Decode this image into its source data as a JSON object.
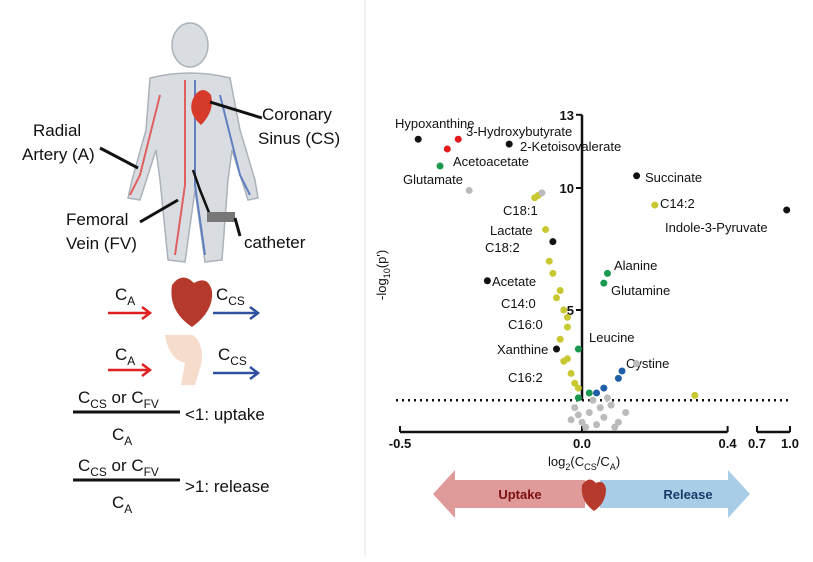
{
  "diagram": {
    "radial_artery": [
      "Radial",
      "Artery (A)"
    ],
    "coronary_sinus": [
      "Coronary",
      "Sinus (CS)"
    ],
    "femoral_vein": [
      "Femoral",
      "Vein (FV)"
    ],
    "catheter": "catheter",
    "c_a": [
      "C",
      "A"
    ],
    "c_cs": [
      "C",
      "CS"
    ],
    "numerator": [
      "C",
      "CS",
      " or C",
      "FV"
    ],
    "denominator": [
      "C",
      "A"
    ],
    "uptake_rule": "<1: uptake",
    "release_rule": ">1: release"
  },
  "arrow": {
    "left": "Uptake",
    "right": "Release"
  },
  "chart_data": {
    "type": "scatter",
    "x_label_parts": [
      "log",
      "2",
      "(C",
      "CS",
      "/C",
      "A",
      ")"
    ],
    "y_label_parts": [
      "-log",
      "10",
      "(p')"
    ],
    "xlim": [
      -0.5,
      1.0
    ],
    "xbreak": [
      0.4,
      0.7
    ],
    "ylim": [
      0,
      13
    ],
    "xticks": [
      -0.5,
      {
        "value": 0,
        "label": "0.0"
      },
      0.4,
      0.7,
      {
        "value": 1,
        "label": "1.0"
      }
    ],
    "yticks": [
      13,
      10,
      5
    ],
    "threshold": 1.3,
    "points": [
      {
        "x": -0.45,
        "y": 12.0,
        "label": "Hypoxanthine",
        "color": "#111111"
      },
      {
        "x": -0.34,
        "y": 12.0,
        "label": "3-Hydroxybutyrate",
        "color": "#e31a1c"
      },
      {
        "x": -0.2,
        "y": 11.8,
        "label": "2-Ketoisovalerate",
        "color": "#111111"
      },
      {
        "x": -0.37,
        "y": 11.6,
        "label": "Acetoacetate",
        "color": "#e31a1c"
      },
      {
        "x": -0.39,
        "y": 10.9,
        "label": "Glutamate",
        "color": "#1a9850"
      },
      {
        "x": 0.15,
        "y": 10.5,
        "label": "Succinate",
        "color": "#111111"
      },
      {
        "x": 0.2,
        "y": 9.3,
        "label": "C14:2",
        "color": "#c8c832"
      },
      {
        "x": 0.97,
        "y": 9.1,
        "label": "Indole-3-Pyruvate",
        "color": "#111111"
      },
      {
        "x": -0.13,
        "y": 9.6,
        "label": "C18:1",
        "color": "#c8c832"
      },
      {
        "x": -0.08,
        "y": 7.8,
        "label": "Lactate",
        "color": "#111111"
      },
      {
        "x": -0.09,
        "y": 7.0,
        "label": "C18:2",
        "color": "#c8c832"
      },
      {
        "x": -0.26,
        "y": 6.2,
        "label": "Acetate",
        "color": "#111111"
      },
      {
        "x": 0.07,
        "y": 6.5,
        "label": "Alanine",
        "color": "#1a9850"
      },
      {
        "x": 0.06,
        "y": 6.1,
        "label": "Glutamine",
        "color": "#1a9850"
      },
      {
        "x": -0.07,
        "y": 5.5,
        "label": "C14:0",
        "color": "#c8c832"
      },
      {
        "x": -0.04,
        "y": 4.3,
        "label": "C16:0",
        "color": "#c8c832"
      },
      {
        "x": -0.01,
        "y": 3.4,
        "label": "Leucine",
        "color": "#1a9850"
      },
      {
        "x": -0.07,
        "y": 3.4,
        "label": "Xanthine",
        "color": "#111111"
      },
      {
        "x": 0.11,
        "y": 2.5,
        "label": "Cystine",
        "color": "#1f5fa8"
      },
      {
        "x": -0.05,
        "y": 2.9,
        "label": "C16:2",
        "color": "#c8c832"
      },
      {
        "x": -0.12,
        "y": 9.7,
        "color": "#c8c832"
      },
      {
        "x": -0.1,
        "y": 8.3,
        "color": "#c8c832"
      },
      {
        "x": -0.08,
        "y": 6.5,
        "color": "#c8c832"
      },
      {
        "x": -0.06,
        "y": 5.8,
        "color": "#c8c832"
      },
      {
        "x": -0.05,
        "y": 5.0,
        "color": "#c8c832"
      },
      {
        "x": -0.04,
        "y": 4.7,
        "color": "#c8c832"
      },
      {
        "x": -0.06,
        "y": 3.8,
        "color": "#c8c832"
      },
      {
        "x": -0.04,
        "y": 3.0,
        "color": "#c8c832"
      },
      {
        "x": -0.03,
        "y": 2.4,
        "color": "#c8c832"
      },
      {
        "x": -0.02,
        "y": 2.0,
        "color": "#c8c832"
      },
      {
        "x": -0.01,
        "y": 1.8,
        "color": "#c8c832"
      },
      {
        "x": 0.31,
        "y": 1.5,
        "color": "#c8c832"
      },
      {
        "x": 0.04,
        "y": 1.6,
        "color": "#1f5fa8"
      },
      {
        "x": 0.06,
        "y": 1.8,
        "color": "#1f5fa8"
      },
      {
        "x": 0.1,
        "y": 2.2,
        "color": "#1f5fa8"
      },
      {
        "x": 0.02,
        "y": 1.6,
        "color": "#1a9850"
      },
      {
        "x": -0.01,
        "y": 1.4,
        "color": "#1a9850"
      },
      {
        "x": 0.0,
        "y": 0.4,
        "color": "#bbbbbb"
      },
      {
        "x": 0.02,
        "y": 0.8,
        "color": "#bbbbbb"
      },
      {
        "x": 0.04,
        "y": 0.3,
        "color": "#bbbbbb"
      },
      {
        "x": -0.02,
        "y": 1.0,
        "color": "#bbbbbb"
      },
      {
        "x": 0.06,
        "y": 0.6,
        "color": "#bbbbbb"
      },
      {
        "x": 0.08,
        "y": 1.1,
        "color": "#bbbbbb"
      },
      {
        "x": 0.03,
        "y": 1.3,
        "color": "#bbbbbb"
      },
      {
        "x": -0.03,
        "y": 0.5,
        "color": "#bbbbbb"
      },
      {
        "x": 0.1,
        "y": 0.4,
        "color": "#bbbbbb"
      },
      {
        "x": 0.01,
        "y": 0.2,
        "color": "#bbbbbb"
      },
      {
        "x": -0.01,
        "y": 0.7,
        "color": "#bbbbbb"
      },
      {
        "x": 0.05,
        "y": 1.0,
        "color": "#bbbbbb"
      },
      {
        "x": 0.12,
        "y": 0.8,
        "color": "#bbbbbb"
      },
      {
        "x": 0.15,
        "y": 2.8,
        "color": "#bbbbbb"
      },
      {
        "x": -0.11,
        "y": 9.8,
        "color": "#bbbbbb"
      },
      {
        "x": -0.31,
        "y": 9.9,
        "color": "#bbbbbb"
      },
      {
        "x": 0.09,
        "y": 0.2,
        "color": "#bbbbbb"
      },
      {
        "x": 0.07,
        "y": 1.4,
        "color": "#bbbbbb"
      }
    ]
  }
}
